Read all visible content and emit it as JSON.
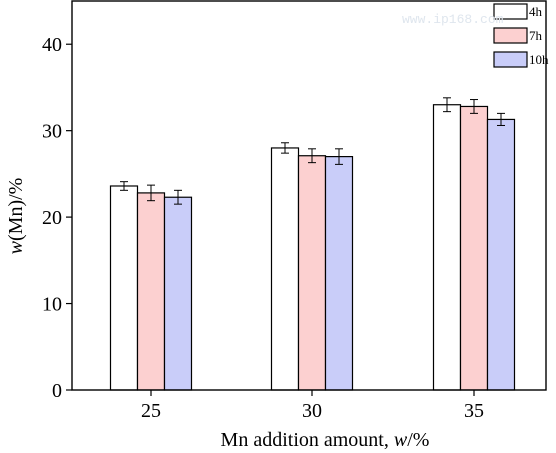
{
  "chart_data": {
    "type": "bar",
    "xlabel_main": "Mn addition amount, ",
    "xlabel_var": "w",
    "xlabel_unit": "/%",
    "ylabel_var": "w",
    "ylabel_rest": "(Mn)/%",
    "categories": [
      "25",
      "30",
      "35"
    ],
    "yticks": [
      "0",
      "10",
      "20",
      "30",
      "40"
    ],
    "ylim": [
      0,
      45
    ],
    "grid": false,
    "legend_position": "top-right",
    "series": [
      {
        "name": "4h",
        "values": [
          23.6,
          28.0,
          33.0
        ],
        "errors": [
          0.5,
          0.6,
          0.8
        ],
        "color": "#ffffff"
      },
      {
        "name": "7h",
        "values": [
          22.8,
          27.1,
          32.8
        ],
        "errors": [
          0.9,
          0.8,
          0.8
        ],
        "color": "#fcd0d0"
      },
      {
        "name": "10h",
        "values": [
          22.3,
          27.0,
          31.3
        ],
        "errors": [
          0.8,
          0.9,
          0.7
        ],
        "color": "#c9cdf9"
      }
    ]
  },
  "watermark": "www.ip168.com"
}
